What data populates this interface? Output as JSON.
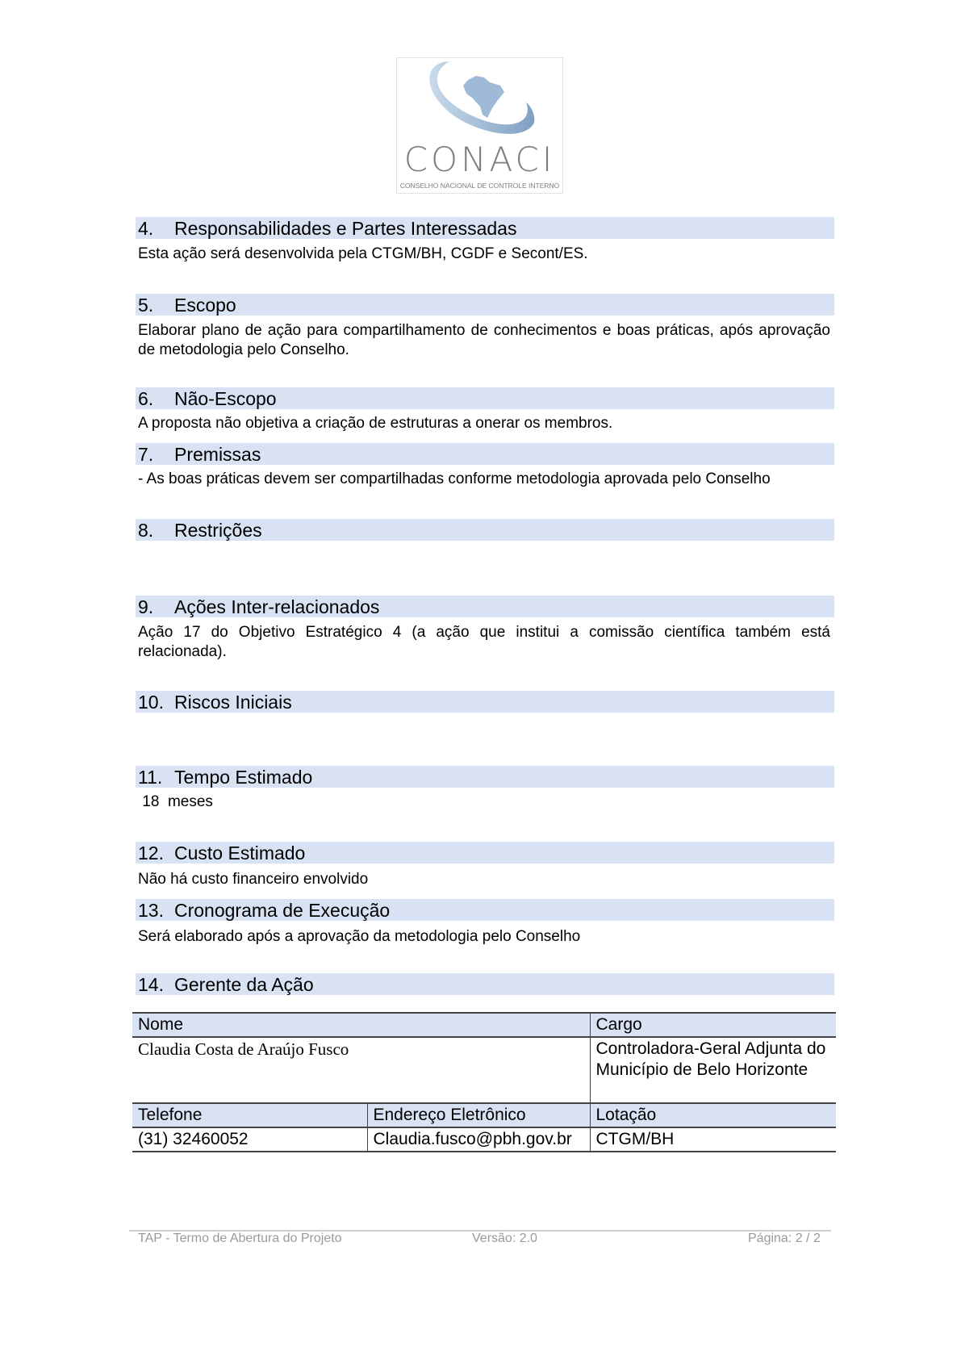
{
  "logo": {
    "name": "CONACI",
    "subtitle": "CONSELHO NACIONAL DE CONTROLE INTERNO"
  },
  "sections": [
    {
      "num": "4.",
      "title": "Responsabilidades e Partes Interessadas",
      "text": "Esta ação será  desenvolvida pela CTGM/BH, CGDF e Secont/ES."
    },
    {
      "num": "5.",
      "title": "Escopo",
      "text": "Elaborar plano de ação para compartilhamento de conhecimentos e boas práticas, após aprovação de metodologia pelo Conselho."
    },
    {
      "num": "6.",
      "title": "Não-Escopo",
      "text": "A proposta não objetiva a criação de estruturas a onerar os membros."
    },
    {
      "num": "7.",
      "title": "Premissas",
      "text": "- As boas práticas devem ser compartilhadas conforme metodologia aprovada pelo Conselho"
    },
    {
      "num": "8.",
      "title": "Restrições",
      "text": ""
    },
    {
      "num": "9.",
      "title": "Ações Inter-relacionados",
      "text": "Ação 17 do Objetivo Estratégico 4 (a ação que institui a comissão científica também está relacionada)."
    },
    {
      "num": "10.",
      "title": "Riscos Iniciais",
      "text": ""
    },
    {
      "num": "11.",
      "title": "Tempo Estimado",
      "text": " 18  meses"
    },
    {
      "num": "12.",
      "title": "Custo Estimado",
      "text": "Não há custo financeiro envolvido"
    },
    {
      "num": "13.",
      "title": "Cronograma de Execução",
      "text": "Será elaborado após a aprovação da metodologia pelo Conselho"
    },
    {
      "num": "14.",
      "title": "Gerente da Ação",
      "text": ""
    }
  ],
  "manager_table": {
    "headers1": {
      "name": "Nome",
      "role": "Cargo"
    },
    "row1": {
      "name": "Claudia Costa de Araújo Fusco",
      "role": "Controladora-Geral Adjunta do Município de Belo Horizonte"
    },
    "headers2": {
      "phone": "Telefone",
      "email": "Endereço Eletrônico",
      "unit": "Lotação"
    },
    "row2": {
      "phone": "(31) 32460052",
      "email": "Claudia.fusco@pbh.gov.br",
      "unit": "CTGM/BH"
    }
  },
  "footer": {
    "doc": "TAP - Termo de Abertura do Projeto",
    "version": "Versão: 2.0",
    "page": "Página: 2 / 2"
  }
}
